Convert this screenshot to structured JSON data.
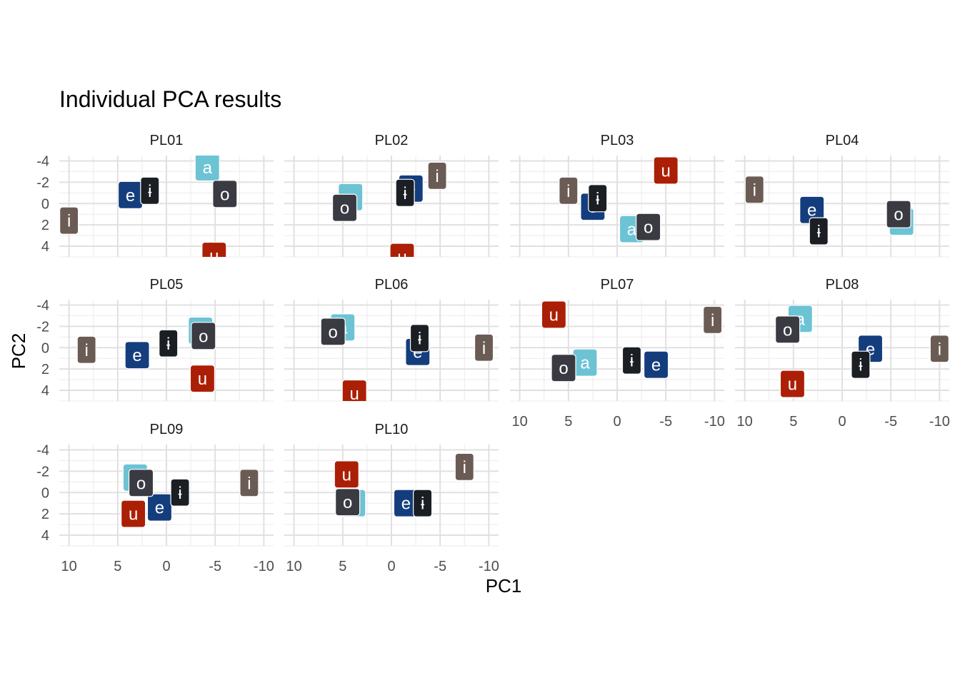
{
  "chart_data": {
    "type": "scatter",
    "title": "Individual PCA results",
    "xlabel": "PC1",
    "ylabel": "PC2",
    "x_reversed": true,
    "y_reversed": true,
    "xlim": [
      11,
      -11
    ],
    "ylim": [
      -4.5,
      5
    ],
    "x_ticks": [
      10,
      5,
      0,
      -5,
      -10
    ],
    "x_tick_labels": [
      "10",
      "5",
      "0",
      "-5",
      "-10"
    ],
    "y_ticks": [
      -4,
      -2,
      0,
      2,
      4
    ],
    "y_tick_labels": [
      "-4",
      "-2",
      "0",
      "2",
      "4"
    ],
    "grid": true,
    "legend": "none",
    "vowel_colors": {
      "a": "#6cc3d4",
      "e": "#143d7e",
      "i": "#6b5b55",
      "ɨ": "#1b1f24",
      "o": "#3a3a42",
      "u": "#ab1f06"
    },
    "panel_order": [
      "i",
      "a",
      "e",
      "ɨ",
      "o",
      "u"
    ],
    "panels": [
      {
        "name": "PL01",
        "points": [
          {
            "label": "a",
            "x": -4.2,
            "y": -3.4
          },
          {
            "label": "e",
            "x": 3.7,
            "y": -0.8
          },
          {
            "label": "ɨ",
            "x": 1.7,
            "y": -1.2
          },
          {
            "label": "o",
            "x": -6.0,
            "y": -0.9
          },
          {
            "label": "i",
            "x": 10.0,
            "y": 1.6
          },
          {
            "label": "u",
            "x": -4.9,
            "y": 4.9
          }
        ]
      },
      {
        "name": "PL02",
        "points": [
          {
            "label": "a",
            "x": 4.2,
            "y": -0.6
          },
          {
            "label": "e",
            "x": -2.0,
            "y": -1.4
          },
          {
            "label": "i",
            "x": -4.7,
            "y": -2.6
          },
          {
            "label": "ɨ",
            "x": -1.4,
            "y": -1.0
          },
          {
            "label": "o",
            "x": 4.8,
            "y": 0.4
          },
          {
            "label": "u",
            "x": -1.1,
            "y": 5.0
          }
        ]
      },
      {
        "name": "PL03",
        "points": [
          {
            "label": "u",
            "x": -5.0,
            "y": -3.1
          },
          {
            "label": "i",
            "x": 5.0,
            "y": -1.2
          },
          {
            "label": "ɨ",
            "x": 2.0,
            "y": -0.5
          },
          {
            "label": "e",
            "x": 2.5,
            "y": 0.3
          },
          {
            "label": "a",
            "x": -1.5,
            "y": 2.4
          },
          {
            "label": "o",
            "x": -3.2,
            "y": 2.2
          }
        ]
      },
      {
        "name": "PL04",
        "points": [
          {
            "label": "i",
            "x": 9.0,
            "y": -1.3
          },
          {
            "label": "e",
            "x": 3.1,
            "y": 0.6
          },
          {
            "label": "a",
            "x": -6.1,
            "y": 1.7
          },
          {
            "label": "o",
            "x": -5.8,
            "y": 1.0
          },
          {
            "label": "ɨ",
            "x": 2.4,
            "y": 2.6
          }
        ]
      },
      {
        "name": "PL05",
        "points": [
          {
            "label": "i",
            "x": 8.2,
            "y": 0.2
          },
          {
            "label": "ɨ",
            "x": -0.2,
            "y": -0.4
          },
          {
            "label": "a",
            "x": -3.5,
            "y": -1.6
          },
          {
            "label": "o",
            "x": -3.8,
            "y": -1.1
          },
          {
            "label": "e",
            "x": 3.0,
            "y": 0.7
          },
          {
            "label": "u",
            "x": -3.7,
            "y": 2.9
          }
        ]
      },
      {
        "name": "PL06",
        "points": [
          {
            "label": "a",
            "x": 5.0,
            "y": -1.9
          },
          {
            "label": "o",
            "x": 6.0,
            "y": -1.5
          },
          {
            "label": "ɨ",
            "x": -2.9,
            "y": -0.9
          },
          {
            "label": "e",
            "x": -2.7,
            "y": 0.4
          },
          {
            "label": "i",
            "x": -9.5,
            "y": 0.0
          },
          {
            "label": "u",
            "x": 3.8,
            "y": 4.3
          }
        ]
      },
      {
        "name": "PL07",
        "points": [
          {
            "label": "u",
            "x": 6.5,
            "y": -3.1
          },
          {
            "label": "i",
            "x": -9.8,
            "y": -2.6
          },
          {
            "label": "a",
            "x": 3.3,
            "y": 1.4
          },
          {
            "label": "o",
            "x": 5.5,
            "y": 1.9
          },
          {
            "label": "ɨ",
            "x": -1.5,
            "y": 1.2
          },
          {
            "label": "e",
            "x": -4.0,
            "y": 1.6
          }
        ]
      },
      {
        "name": "PL08",
        "points": [
          {
            "label": "a",
            "x": 4.3,
            "y": -2.7
          },
          {
            "label": "o",
            "x": 5.6,
            "y": -1.7
          },
          {
            "label": "e",
            "x": -2.9,
            "y": 0.1
          },
          {
            "label": "i",
            "x": -10.0,
            "y": 0.1
          },
          {
            "label": "ɨ",
            "x": -1.9,
            "y": 1.6
          },
          {
            "label": "u",
            "x": 5.1,
            "y": 3.4
          }
        ]
      },
      {
        "name": "PL09",
        "points": [
          {
            "label": "a",
            "x": 3.2,
            "y": -1.4
          },
          {
            "label": "o",
            "x": 2.6,
            "y": -0.9
          },
          {
            "label": "i",
            "x": -8.5,
            "y": -0.9
          },
          {
            "label": "ɨ",
            "x": -1.4,
            "y": 0.0
          },
          {
            "label": "e",
            "x": 0.7,
            "y": 1.4
          },
          {
            "label": "u",
            "x": 3.4,
            "y": 2.0
          }
        ]
      },
      {
        "name": "PL10",
        "points": [
          {
            "label": "i",
            "x": -7.5,
            "y": -2.4
          },
          {
            "label": "u",
            "x": 4.6,
            "y": -1.7
          },
          {
            "label": "a",
            "x": 3.9,
            "y": 1.0
          },
          {
            "label": "o",
            "x": 4.5,
            "y": 0.9
          },
          {
            "label": "e",
            "x": -1.5,
            "y": 1.0
          },
          {
            "label": "ɨ",
            "x": -3.2,
            "y": 1.0
          }
        ]
      }
    ]
  }
}
